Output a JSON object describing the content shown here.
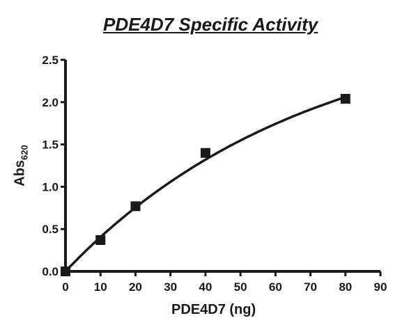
{
  "chart_data": {
    "type": "scatter",
    "title": "PDE4D7 Specific Activity",
    "xlabel": "PDE4D7 (ng)",
    "ylabel": "Abs",
    "ylabel_subscript": "620",
    "xlim": [
      0,
      90
    ],
    "ylim": [
      0,
      2.5
    ],
    "x_ticks": [
      "0",
      "10",
      "20",
      "30",
      "40",
      "50",
      "60",
      "70",
      "80",
      "90"
    ],
    "y_ticks": [
      "0.0",
      "0.5",
      "1.0",
      "1.5",
      "2.0",
      "2.5"
    ],
    "grid": false,
    "points": [
      {
        "x": 0,
        "y": 0.0
      },
      {
        "x": 10,
        "y": 0.37
      },
      {
        "x": 20,
        "y": 0.77
      },
      {
        "x": 40,
        "y": 1.4
      },
      {
        "x": 80,
        "y": 2.04
      }
    ],
    "fit_curve": {
      "type": "saturating exponential",
      "ymax": 3.0,
      "k": 0.0145
    },
    "colors": {
      "ink": "#1a1a1a"
    }
  }
}
